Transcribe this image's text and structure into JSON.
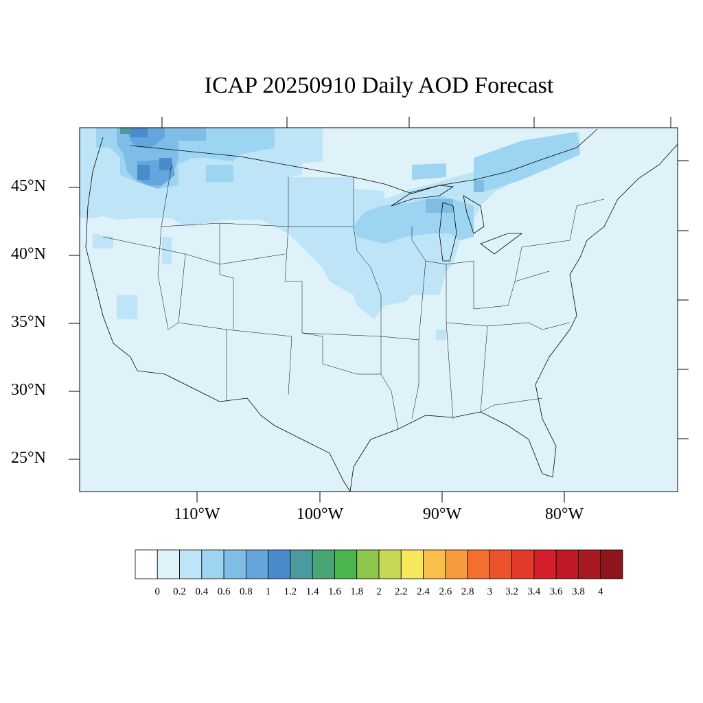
{
  "title": "ICAP 20250910 Daily AOD Forecast",
  "lat_labels": [
    "45°N",
    "40°N",
    "35°N",
    "30°N",
    "25°N"
  ],
  "lon_labels": [
    "110°W",
    "100°W",
    "90°W",
    "80°W"
  ],
  "colorbar": {
    "labels": [
      "0",
      "0.2",
      "0.4",
      "0.6",
      "0.8",
      "1",
      "1.2",
      "1.4",
      "1.6",
      "1.8",
      "2",
      "2.2",
      "2.4",
      "2.6",
      "2.8",
      "3",
      "3.2",
      "3.4",
      "3.6",
      "3.8",
      "4"
    ],
    "colors": [
      "#ffffff",
      "#dff2fa",
      "#bde5f7",
      "#9dd4f2",
      "#7fbde6",
      "#64a6dc",
      "#4a8bcb",
      "#4a9b9e",
      "#48a676",
      "#4bb44c",
      "#8dc54d",
      "#c5d755",
      "#f6e85a",
      "#f8bf4a",
      "#f89a3e",
      "#f46e2d",
      "#ec522b",
      "#e23b2a",
      "#d41f2b",
      "#c01a26",
      "#a81922",
      "#8e151b"
    ]
  },
  "map": {
    "region": "Continental United States",
    "background_color": "#dff2fa",
    "smoke_plume_colors": [
      "#bde5f7",
      "#9dd4f2",
      "#7fbde6",
      "#64a6dc",
      "#4a8bcb"
    ]
  }
}
